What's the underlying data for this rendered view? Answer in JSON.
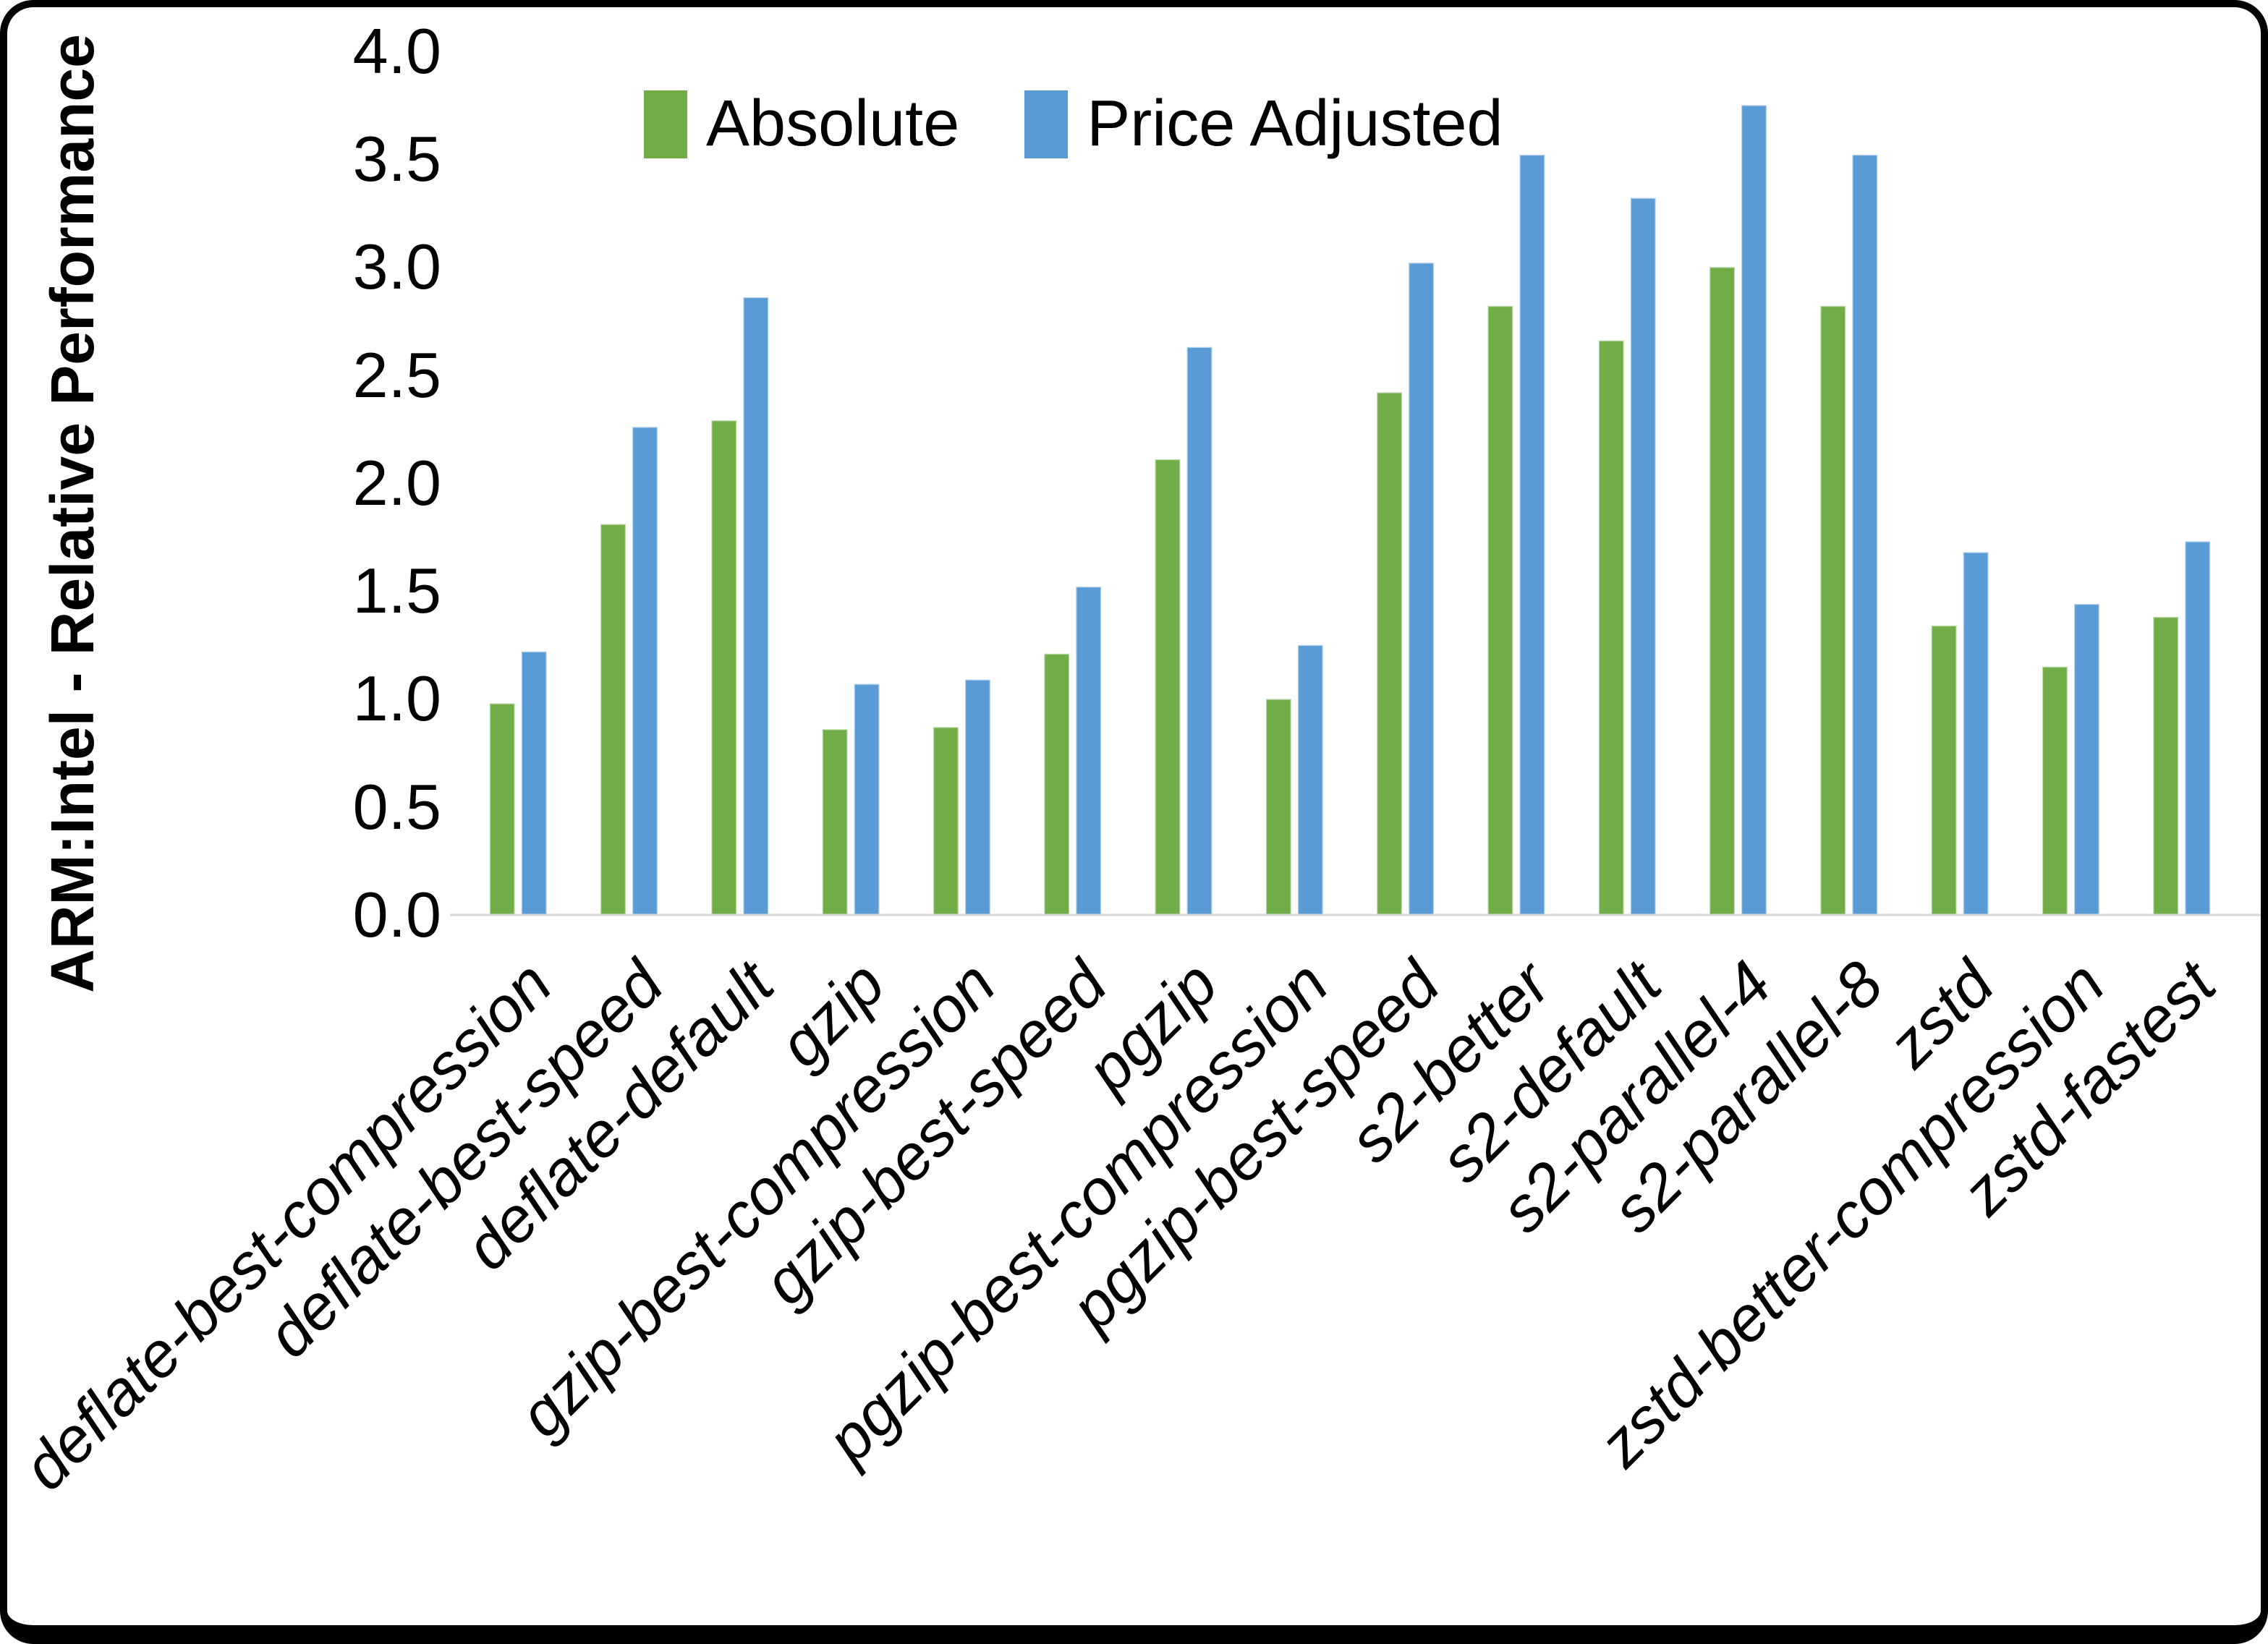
{
  "chart_data": {
    "type": "bar",
    "title": "",
    "xlabel": "",
    "ylabel": "ARM:Intel - Relative Performance",
    "ylim": [
      0.0,
      4.0
    ],
    "ytick_step": 0.5,
    "yticks": [
      "0.0",
      "0.5",
      "1.0",
      "1.5",
      "2.0",
      "2.5",
      "3.0",
      "3.5",
      "4.0"
    ],
    "grid": false,
    "legend_position": "top-center",
    "axis_line_color": "#d9d9d9",
    "categories": [
      "deflate-best-compression",
      "deflate-best-speed",
      "deflate-default",
      "gzip",
      "gzip-best-compression",
      "gzip-best-speed",
      "pgzip",
      "pgzip-best-compression",
      "pgzip-best-speed",
      "s2-better",
      "s2-default",
      "s2-parallel-4",
      "s2-parallel-8",
      "zstd",
      "zstd-better-compression",
      "zstd-fastest"
    ],
    "series": [
      {
        "name": "Absolute",
        "color": "#70AD47",
        "values": [
          0.98,
          1.81,
          2.29,
          0.86,
          0.87,
          1.21,
          2.11,
          1.0,
          2.42,
          2.82,
          2.66,
          3.0,
          2.82,
          1.34,
          1.15,
          1.38
        ]
      },
      {
        "name": "Price Adjusted",
        "color": "#5B9BD5",
        "values": [
          1.22,
          2.26,
          2.86,
          1.07,
          1.09,
          1.52,
          2.63,
          1.25,
          3.02,
          3.52,
          3.32,
          3.75,
          3.52,
          1.68,
          1.44,
          1.73
        ]
      }
    ]
  }
}
